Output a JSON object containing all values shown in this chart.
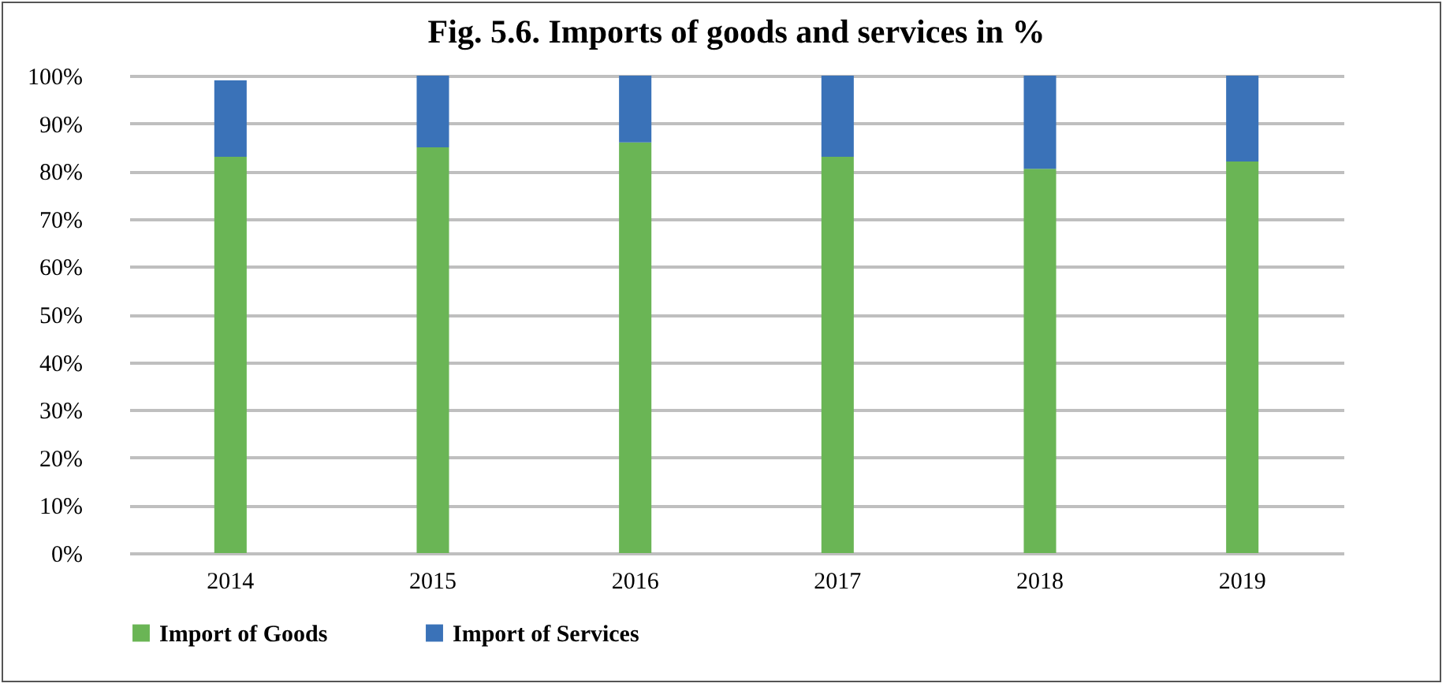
{
  "chart_data": {
    "type": "bar",
    "title": "Fig. 5.6. Imports of goods and services in %",
    "categories": [
      "2014",
      "2015",
      "2016",
      "2017",
      "2018",
      "2019"
    ],
    "stacked": true,
    "series": [
      {
        "name": "Import of Goods",
        "color": "#6ab555",
        "values": [
          83,
          85,
          86,
          83,
          80.5,
          82
        ]
      },
      {
        "name": "Import of Services",
        "color": "#3a72b8",
        "values": [
          16,
          15,
          14,
          17,
          19.5,
          18
        ]
      }
    ],
    "ylim": [
      0,
      100
    ],
    "yticks": [
      {
        "value": 0,
        "label": "0%"
      },
      {
        "value": 10,
        "label": "10%"
      },
      {
        "value": 20,
        "label": "20%"
      },
      {
        "value": 30,
        "label": "30%"
      },
      {
        "value": 40,
        "label": "40%"
      },
      {
        "value": 50,
        "label": "50%"
      },
      {
        "value": 60,
        "label": "60%"
      },
      {
        "value": 70,
        "label": "70%"
      },
      {
        "value": 80,
        "label": "80%"
      },
      {
        "value": 90,
        "label": "90%"
      },
      {
        "value": 100,
        "label": "100%"
      }
    ],
    "grid": "y",
    "legend": "bottom"
  }
}
